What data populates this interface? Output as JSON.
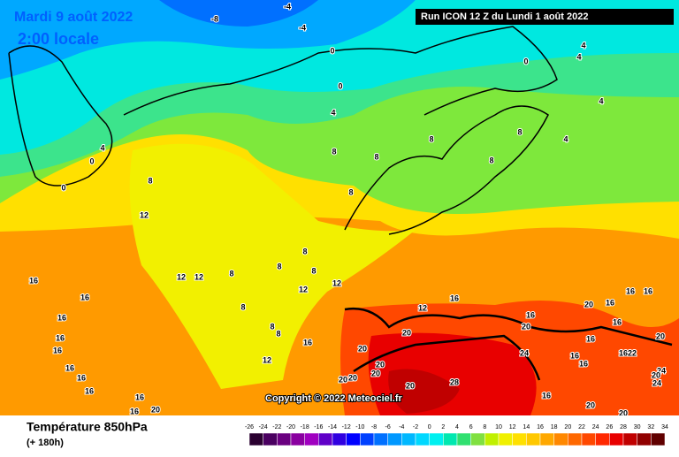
{
  "map": {
    "date": "Mardi 9 août 2022",
    "local_time": "2:00 locale",
    "run": "Run ICON 12 Z du Lundi 1 août 2022",
    "copyright": "Copyright © 2022 Meteociel.fr",
    "parameter": "Température 850hPa",
    "lead_time": "(+ 180h)",
    "contour_labels": [
      -8,
      -4,
      -4,
      0,
      0,
      0,
      4,
      4,
      4,
      4,
      4,
      4,
      0,
      0,
      8,
      8,
      8,
      8,
      8,
      8,
      8,
      12,
      12,
      12,
      8,
      8,
      8,
      8,
      12,
      12,
      8,
      16,
      16,
      16,
      16,
      16,
      16,
      16,
      16,
      16,
      16,
      16,
      12,
      12,
      16,
      16,
      20,
      20,
      20,
      20,
      20,
      20,
      20,
      20,
      28,
      24,
      20,
      16,
      16,
      16,
      16,
      16,
      16,
      16,
      16,
      22,
      20,
      24,
      24,
      20,
      16,
      20,
      20,
      20,
      8,
      8
    ],
    "colorbar": {
      "ticks": [
        -26,
        -24,
        -22,
        -20,
        -18,
        -16,
        -14,
        -12,
        -10,
        -8,
        -6,
        -4,
        -2,
        0,
        2,
        4,
        6,
        8,
        10,
        12,
        14,
        16,
        18,
        20,
        22,
        24,
        26,
        28,
        30,
        32,
        34
      ],
      "colors": [
        "#2a0030",
        "#4a0060",
        "#6a0080",
        "#8a00a0",
        "#a000c0",
        "#6000c8",
        "#3000e0",
        "#0000ff",
        "#0040ff",
        "#0070ff",
        "#0098ff",
        "#00b8ff",
        "#00d8ff",
        "#00f0f0",
        "#00e8b0",
        "#30e070",
        "#80e040",
        "#c0f000",
        "#f0f000",
        "#ffe000",
        "#ffc800",
        "#ffa800",
        "#ff8800",
        "#ff6800",
        "#ff4800",
        "#ff2800",
        "#e80000",
        "#c00000",
        "#900000",
        "#600000"
      ]
    }
  }
}
